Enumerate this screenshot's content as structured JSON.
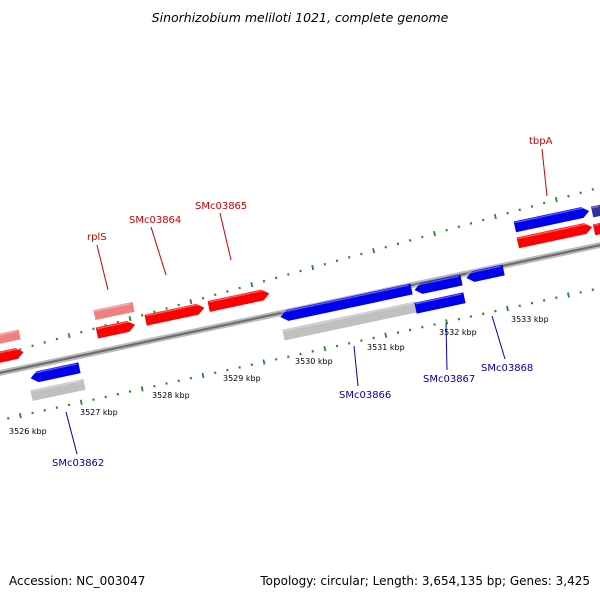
{
  "title": "Sinorhizobium meliloti 1021, complete genome",
  "footer": {
    "accession": "Accession: NC_003047",
    "summary": "Topology: circular; Length: 3,654,135 bp; Genes: 3,425"
  },
  "colors": {
    "forward_strand": "#ff0000",
    "forward_strand_light": "#f08080",
    "reverse_strand": "#0000ee",
    "reverse_strand_dark": "#333399",
    "pseudo_gene": "#c0c0c0",
    "backbone": "#888888",
    "tick_green": "#228b22",
    "forward_label": "#cc0000",
    "reverse_label": "#0000aa"
  },
  "position_labels": [
    "3526 kbp",
    "3527 kbp",
    "3528 kbp",
    "3529 kbp",
    "3530 kbp",
    "3531 kbp",
    "3532 kbp",
    "3533 kbp"
  ],
  "gene_labels": {
    "forward": [
      "rplS",
      "SMc03864",
      "SMc03865",
      "tbpA"
    ],
    "reverse": [
      "SMc03862",
      "SMc03866",
      "SMc03867",
      "SMc03868"
    ]
  }
}
